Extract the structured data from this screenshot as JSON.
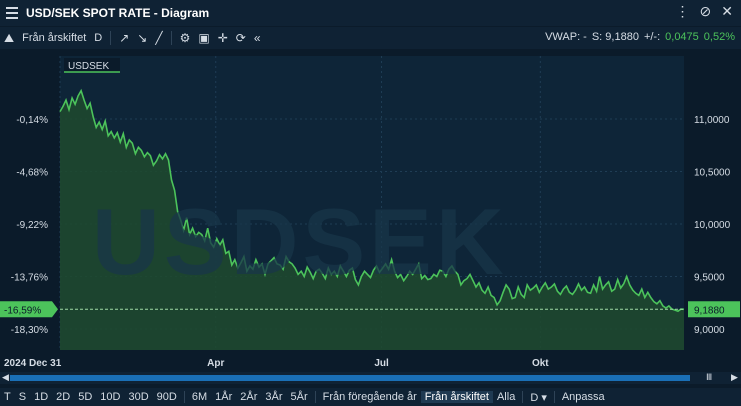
{
  "window": {
    "title": "USD/SEK SPOT RATE - Diagram"
  },
  "toolbar": {
    "from_label": "Från årskiftet",
    "period_label": "D",
    "vwap_label": "VWAP: -",
    "s_label": "S: 9,1880",
    "change_label": "+/-:",
    "change_abs": "0,0475",
    "change_pct": "0,52%"
  },
  "chart_data": {
    "type": "area",
    "series": [
      {
        "name": "USDSEK"
      }
    ],
    "watermark": "USDSEK",
    "x_ticks": [
      "2024 Dec 31",
      "Apr",
      "Jul",
      "Okt"
    ],
    "y_right_ticks": [
      "11,0000",
      "10,5000",
      "10,0000",
      "9,5000",
      "9,0000"
    ],
    "y_left_ticks": [
      "-0,14%",
      "-4,68%",
      "-9,22%",
      "-13,76%",
      "-18,30%"
    ],
    "ylim": [
      8.8,
      11.6
    ],
    "current_value_label": "9,1880",
    "current_pct_label": "-16,59%",
    "x": [
      0,
      3,
      6,
      9,
      12,
      15,
      18,
      21,
      24,
      27,
      30,
      33,
      36,
      39,
      42,
      45,
      48,
      51,
      54,
      57,
      60,
      63,
      66,
      69,
      72,
      75,
      78,
      81,
      84,
      87,
      90,
      93,
      96,
      99,
      102,
      105,
      108,
      111,
      114,
      117,
      120,
      123,
      126,
      129,
      132,
      135,
      138,
      141,
      144,
      147,
      150,
      153,
      156,
      159,
      162,
      165,
      168,
      171,
      174,
      177,
      180,
      183,
      186,
      189,
      192,
      195,
      198,
      201,
      204,
      207,
      210,
      213,
      216,
      219,
      222,
      225,
      228,
      231,
      234,
      237,
      240,
      243,
      246,
      249,
      252,
      255,
      258,
      261,
      264,
      267,
      270,
      273,
      276,
      279,
      282,
      285,
      288,
      291,
      294,
      297,
      300,
      303,
      306,
      309,
      312,
      315,
      318,
      321,
      324,
      327,
      330,
      333,
      336,
      339,
      342,
      345,
      348,
      351,
      354,
      357,
      360,
      363,
      366,
      369,
      372,
      375,
      378,
      381,
      384,
      387,
      390,
      393,
      396,
      399,
      402,
      405,
      408,
      411,
      414,
      417,
      420,
      423,
      426,
      429,
      432,
      435,
      438,
      441,
      444,
      447,
      450,
      453,
      456,
      459,
      462,
      465,
      468,
      471,
      474,
      477,
      480,
      483,
      486,
      489,
      492,
      495,
      498,
      501,
      504,
      507,
      510,
      513,
      516,
      519,
      522,
      525,
      528,
      531,
      534,
      537,
      540,
      543,
      546,
      549,
      552,
      555,
      558,
      561,
      564,
      567,
      570,
      573,
      576,
      579,
      582,
      585,
      588,
      591,
      594,
      597,
      600,
      603,
      606,
      609,
      612,
      615,
      618,
      621
    ],
    "values": [
      11.07,
      11.12,
      11.18,
      11.09,
      11.2,
      11.14,
      11.22,
      11.27,
      11.18,
      11.1,
      11.15,
      11.02,
      10.92,
      10.97,
      10.9,
      10.98,
      10.84,
      10.88,
      10.82,
      10.87,
      10.78,
      10.86,
      10.73,
      10.8,
      10.77,
      10.67,
      10.73,
      10.7,
      10.64,
      10.68,
      10.65,
      10.56,
      10.6,
      10.66,
      10.62,
      10.67,
      10.61,
      10.42,
      10.32,
      10.12,
      10.04,
      9.94,
      10.06,
      9.9,
      9.96,
      9.88,
      9.92,
      9.9,
      9.84,
      9.96,
      9.82,
      9.78,
      9.86,
      9.8,
      9.85,
      9.72,
      9.74,
      9.61,
      9.66,
      9.58,
      9.63,
      9.69,
      9.55,
      9.6,
      9.57,
      9.66,
      9.59,
      9.62,
      9.52,
      9.62,
      9.65,
      9.68,
      9.62,
      9.61,
      9.57,
      9.69,
      9.64,
      9.62,
      9.58,
      9.52,
      9.55,
      9.5,
      9.59,
      9.54,
      9.48,
      9.55,
      9.57,
      9.53,
      9.48,
      9.58,
      9.52,
      9.55,
      9.5,
      9.6,
      9.55,
      9.5,
      9.56,
      9.58,
      9.47,
      9.42,
      9.5,
      9.55,
      9.52,
      9.49,
      9.56,
      9.6,
      9.54,
      9.58,
      9.62,
      9.57,
      9.66,
      9.55,
      9.49,
      9.52,
      9.46,
      9.5,
      9.55,
      9.52,
      9.57,
      9.62,
      9.48,
      9.51,
      9.47,
      9.48,
      9.52,
      9.5,
      9.56,
      9.55,
      9.5,
      9.57,
      9.6,
      9.55,
      9.52,
      9.42,
      9.46,
      9.48,
      9.52,
      9.46,
      9.4,
      9.44,
      9.37,
      9.34,
      9.4,
      9.32,
      9.3,
      9.23,
      9.27,
      9.35,
      9.42,
      9.38,
      9.29,
      9.3,
      9.4,
      9.33,
      9.3,
      9.42,
      9.37,
      9.39,
      9.42,
      9.35,
      9.4,
      9.44,
      9.38,
      9.4,
      9.43,
      9.36,
      9.33,
      9.38,
      9.41,
      9.35,
      9.33,
      9.37,
      9.43,
      9.37,
      9.4,
      9.35,
      9.34,
      9.42,
      9.36,
      9.5,
      9.38,
      9.42,
      9.45,
      9.36,
      9.38,
      9.47,
      9.39,
      9.43,
      9.5,
      9.42,
      9.37,
      9.34,
      9.32,
      9.38,
      9.3,
      9.35,
      9.3,
      9.26,
      9.24,
      9.27,
      9.22,
      9.2,
      9.22,
      9.19,
      9.18,
      9.17,
      9.19,
      9.188
    ],
    "grid": true
  },
  "range_buttons": [
    "T",
    "S",
    "1D",
    "2D",
    "5D",
    "10D",
    "30D",
    "90D",
    "6M",
    "1År",
    "2År",
    "3År",
    "5År",
    "Från föregående år",
    "Från årskiftet",
    "Alla",
    "D",
    "Anpassa"
  ],
  "icons": [
    "menu-icon",
    "pencil-icon",
    "cursor-icon",
    "line-tool-icon",
    "settings-icon",
    "info-box-icon",
    "crosshair-icon",
    "refresh-icon",
    "collapse-icon"
  ],
  "colors": {
    "line": "#4cc35b",
    "fill": "#1f4a2e",
    "background": "#0b1b2a",
    "toolbar": "#0f2234",
    "accent": "#4cc35b"
  }
}
